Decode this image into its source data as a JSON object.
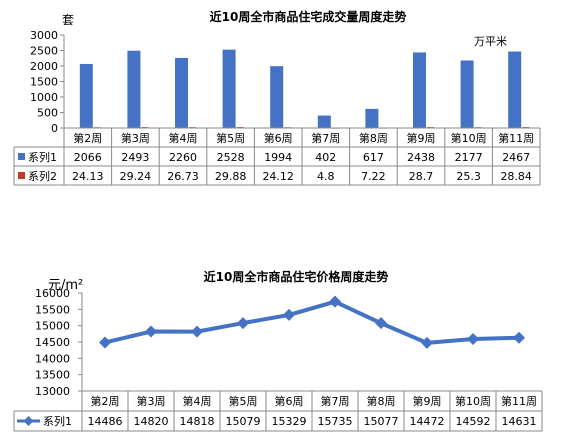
{
  "chart_data": [
    {
      "type": "bar",
      "title": "近10周全市商品住宅成交量周度走势",
      "left_unit": "套",
      "right_unit": "万平米",
      "categories": [
        "第2周",
        "第3周",
        "第4周",
        "第5周",
        "第6周",
        "第7周",
        "第8周",
        "第9周",
        "第10周",
        "第11周"
      ],
      "y_ticks": [
        "0",
        "500",
        "1000",
        "1500",
        "2000",
        "2500",
        "3000"
      ],
      "ylim": [
        0,
        3000
      ],
      "grid": false,
      "legend": "table-below",
      "series": [
        {
          "name": "系列1",
          "color": "#4472C4",
          "values": [
            2066,
            2493,
            2260,
            2528,
            1994,
            402,
            617,
            2438,
            2177,
            2467
          ],
          "labels": [
            "2066",
            "2493",
            "2260",
            "2528",
            "1994",
            "402",
            "617",
            "2438",
            "2177",
            "2467"
          ]
        },
        {
          "name": "系列2",
          "color": "#C0392B",
          "values": [
            24.13,
            29.24,
            26.73,
            29.88,
            24.12,
            4.8,
            7.22,
            28.7,
            25.3,
            28.84
          ],
          "labels": [
            "24.13",
            "29.24",
            "26.73",
            "29.88",
            "24.12",
            "4.8",
            "7.22",
            "28.7",
            "25.3",
            "28.84"
          ]
        }
      ]
    },
    {
      "type": "line",
      "title": "近10周全市商品住宅价格周度走势",
      "unit": "元/m²",
      "categories": [
        "第2周",
        "第3周",
        "第4周",
        "第5周",
        "第6周",
        "第7周",
        "第8周",
        "第9周",
        "第10周",
        "第11周"
      ],
      "y_ticks": [
        "13000",
        "13500",
        "14000",
        "14500",
        "15000",
        "15500",
        "16000"
      ],
      "ylim": [
        13000,
        16000
      ],
      "grid": false,
      "legend": "table-below",
      "series": [
        {
          "name": "系列1",
          "color": "#4472C4",
          "values": [
            14486,
            14820,
            14818,
            15079,
            15329,
            15735,
            15077,
            14472,
            14592,
            14631
          ],
          "labels": [
            "14486",
            "14820",
            "14818",
            "15079",
            "15329",
            "15735",
            "15077",
            "14472",
            "14592",
            "14631"
          ]
        }
      ]
    }
  ]
}
